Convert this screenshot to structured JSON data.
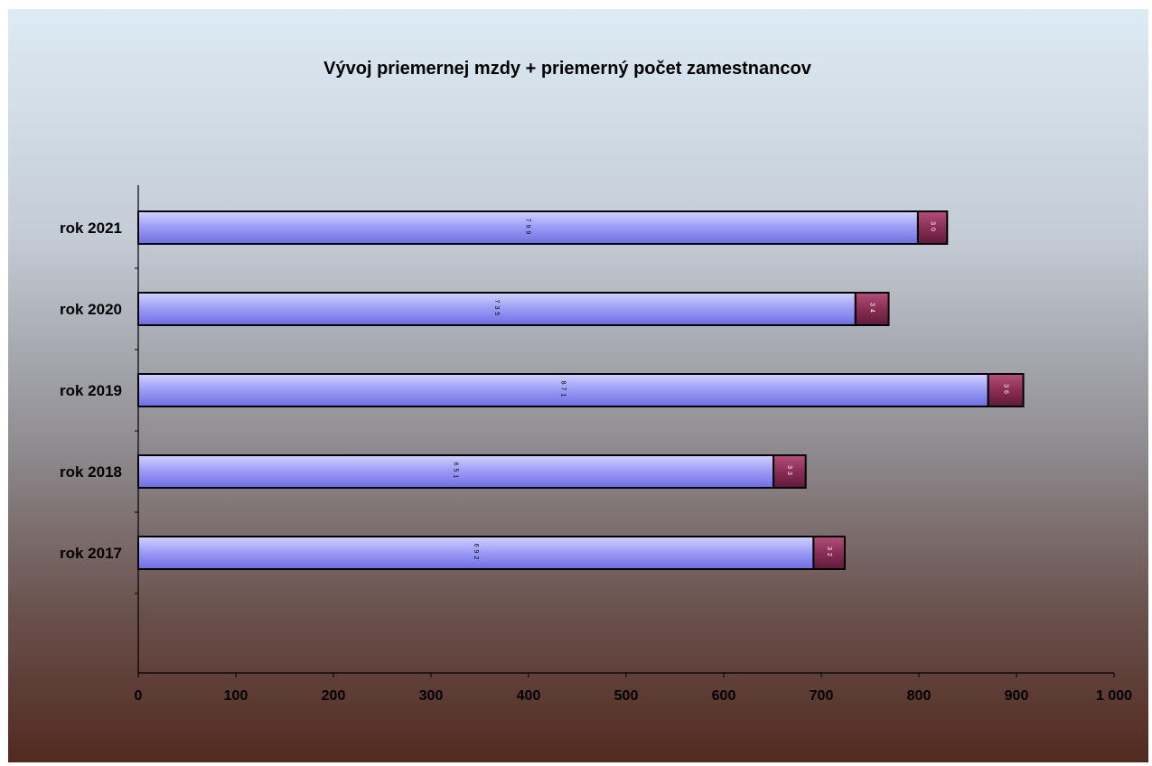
{
  "chart_data": {
    "type": "bar",
    "orientation": "horizontal",
    "stacked": true,
    "title": "Vývoj priemernej mzdy + priemerný počet zamestnancov",
    "categories": [
      "rok 2017",
      "rok 2018",
      "rok 2019",
      "rok 2020",
      "rok 2021"
    ],
    "series": [
      {
        "values": [
          692,
          651,
          871,
          735,
          799
        ],
        "color": "#9b9bf5"
      },
      {
        "values": [
          32,
          33,
          36,
          34,
          30
        ],
        "color": "#8a2e55"
      }
    ],
    "x_ticks": [
      "0",
      "100",
      "200",
      "300",
      "400",
      "500",
      "600",
      "700",
      "800",
      "900",
      "1 000"
    ],
    "xlim": [
      0,
      1000
    ],
    "grid": false,
    "legend": "none"
  }
}
